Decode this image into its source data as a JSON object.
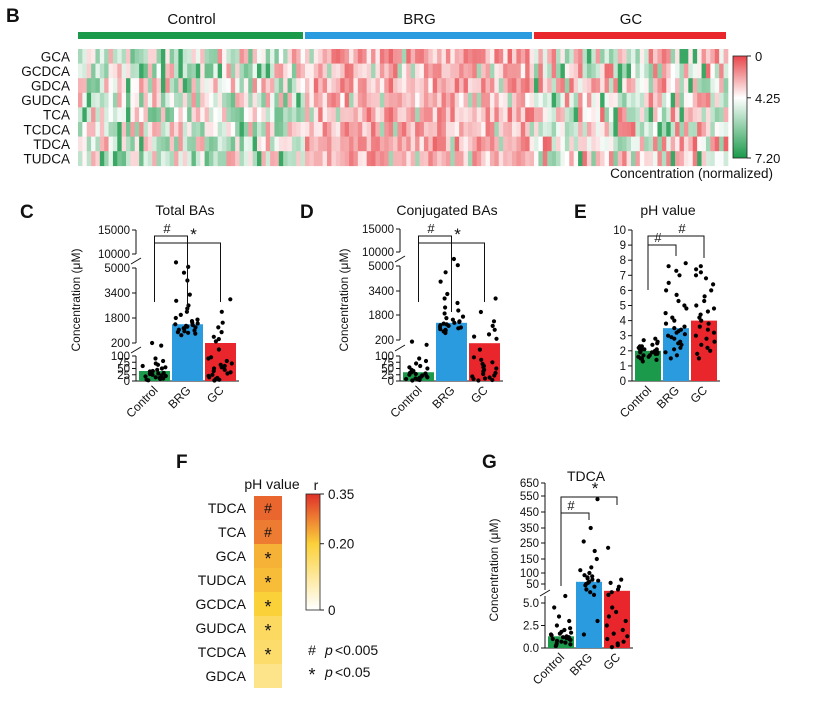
{
  "figure": {
    "panel_labels": [
      "B",
      "C",
      "D",
      "E",
      "F",
      "G"
    ]
  },
  "colors": {
    "control": "#1a9a4a",
    "brg": "#2b9be0",
    "gc": "#e8262c",
    "heat_low": "#1a9a4a",
    "heat_mid": "#ffffff",
    "heat_high": "#e8454a",
    "corr_low": "#ffffff",
    "corr_mid": "#fbd13a",
    "corr_high": "#e0302a"
  },
  "chart_data": [
    {
      "panel": "B",
      "type": "heatmap",
      "groups": [
        "Control",
        "BRG",
        "GC"
      ],
      "rows": [
        "GCA",
        "GCDCA",
        "GDCA",
        "GUDCA",
        "TCA",
        "TCDCA",
        "TDCA",
        "TUDCA"
      ],
      "colorbar": {
        "min": 0,
        "mid": 4.25,
        "max": 7.2,
        "ticks": [
          "0",
          "4.25",
          "7.20"
        ],
        "label": "Concentration (normalized)"
      },
      "group_means": {
        "Control": [
          3.8,
          3.6,
          3.8,
          3.7,
          3.7,
          3.9,
          3.8,
          3.6
        ],
        "BRG": [
          5.6,
          5.5,
          5.5,
          5.4,
          5.6,
          5.5,
          5.6,
          5.5
        ],
        "GC": [
          4.4,
          4.3,
          4.4,
          4.3,
          4.4,
          4.4,
          4.5,
          4.3
        ]
      }
    },
    {
      "panel": "C",
      "type": "bar",
      "title": "Total BAs",
      "ylabel": "Concentration (μM)",
      "categories": [
        "Control",
        "BRG",
        "GC"
      ],
      "values": [
        40,
        1400,
        200
      ],
      "ylim": [
        0,
        15000
      ],
      "yticks": [
        "0",
        "25",
        "50",
        "75",
        "100",
        "200",
        "1800",
        "3400",
        "5000",
        "10000",
        "15000"
      ],
      "significance": [
        {
          "from": "Control",
          "to": "BRG",
          "mark": "#"
        },
        {
          "from": "Control",
          "to": "GC",
          "mark": "*"
        }
      ],
      "points": {
        "Control": [
          3,
          5,
          8,
          10,
          12,
          15,
          18,
          20,
          22,
          25,
          28,
          30,
          32,
          35,
          38,
          40,
          45,
          50,
          55,
          60,
          65,
          70,
          80,
          90,
          180,
          200
        ],
        "BRG": [
          700,
          800,
          850,
          900,
          950,
          1000,
          1050,
          1100,
          1150,
          1200,
          1250,
          1300,
          1350,
          1400,
          1450,
          1500,
          1600,
          1700,
          1800,
          2000,
          2200,
          2400,
          2600,
          2900,
          3300,
          4200,
          4700,
          5400,
          7000
        ],
        "GC": [
          2,
          5,
          8,
          12,
          15,
          20,
          25,
          30,
          35,
          40,
          45,
          50,
          55,
          60,
          65,
          70,
          80,
          90,
          95,
          150,
          300,
          450,
          600,
          900,
          1200,
          1500,
          2200,
          3000
        ]
      }
    },
    {
      "panel": "D",
      "type": "bar",
      "title": "Conjugated BAs",
      "ylabel": "Concentration (μM)",
      "categories": [
        "Control",
        "BRG",
        "GC"
      ],
      "values": [
        35,
        1300,
        180
      ],
      "ylim": [
        0,
        15000
      ],
      "yticks": [
        "0",
        "25",
        "50",
        "75",
        "100",
        "200",
        "1800",
        "3400",
        "5000",
        "10000",
        "15000"
      ],
      "significance": [
        {
          "from": "Control",
          "to": "BRG",
          "mark": "#"
        },
        {
          "from": "Control",
          "to": "GC",
          "mark": "*"
        }
      ],
      "points": {
        "Control": [
          2,
          4,
          6,
          8,
          10,
          12,
          15,
          18,
          20,
          22,
          25,
          28,
          30,
          32,
          35,
          40,
          45,
          50,
          55,
          60,
          70,
          80,
          90,
          170,
          190
        ],
        "BRG": [
          650,
          750,
          800,
          850,
          900,
          950,
          1000,
          1050,
          1100,
          1150,
          1200,
          1250,
          1300,
          1350,
          1400,
          1500,
          1600,
          1700,
          1900,
          2100,
          2300,
          2600,
          2900,
          3200,
          4000,
          4600,
          5300,
          7500
        ],
        "GC": [
          2,
          4,
          8,
          10,
          14,
          18,
          22,
          28,
          32,
          38,
          45,
          50,
          55,
          60,
          68,
          75,
          85,
          95,
          140,
          280,
          420,
          560,
          850,
          1100,
          1400,
          2000,
          2900
        ]
      }
    },
    {
      "panel": "E",
      "type": "bar",
      "title": "pH value",
      "ylabel": "",
      "categories": [
        "Control",
        "BRG",
        "GC"
      ],
      "values": [
        2.0,
        3.5,
        4.0
      ],
      "ylim": [
        0,
        10
      ],
      "yticks": [
        "0",
        "1",
        "2",
        "3",
        "4",
        "5",
        "6",
        "7",
        "8",
        "9",
        "10"
      ],
      "significance": [
        {
          "from": "Control",
          "to": "BRG",
          "mark": "#"
        },
        {
          "from": "Control",
          "to": "GC",
          "mark": "#"
        }
      ],
      "points": {
        "Control": [
          1.3,
          1.4,
          1.5,
          1.5,
          1.6,
          1.6,
          1.7,
          1.7,
          1.8,
          1.8,
          1.8,
          1.9,
          1.9,
          1.9,
          2.0,
          2.0,
          2.0,
          2.1,
          2.1,
          2.1,
          2.2,
          2.2,
          2.3,
          2.3,
          2.4,
          2.5,
          2.6,
          2.7,
          2.8
        ],
        "BRG": [
          1.5,
          1.7,
          1.9,
          2.1,
          2.2,
          2.4,
          2.5,
          2.6,
          2.8,
          2.9,
          3.0,
          3.1,
          3.2,
          3.3,
          3.4,
          3.5,
          3.6,
          3.8,
          4.0,
          4.2,
          4.5,
          4.8,
          5.0,
          5.3,
          5.7,
          6.0,
          6.5,
          7.0,
          7.3,
          7.6,
          7.8
        ],
        "GC": [
          1.5,
          1.8,
          2.0,
          2.2,
          2.4,
          2.6,
          2.8,
          3.0,
          3.2,
          3.4,
          3.6,
          3.8,
          4.0,
          4.2,
          4.4,
          4.6,
          4.8,
          5.0,
          5.3,
          5.6,
          6.0,
          6.4,
          6.8,
          7.0,
          7.2,
          7.4,
          7.6
        ]
      }
    },
    {
      "panel": "F",
      "type": "heatmap",
      "title": "pH value",
      "colorbar_label": "r",
      "colorbar": {
        "min": 0,
        "mid": 0.2,
        "max": 0.35,
        "ticks": [
          "0",
          "0.20",
          "0.35"
        ]
      },
      "rows": [
        "TDCA",
        "TCA",
        "GCA",
        "TUDCA",
        "GCDCA",
        "GUDCA",
        "TCDCA",
        "GDCA"
      ],
      "r_values": [
        0.3,
        0.28,
        0.23,
        0.22,
        0.2,
        0.16,
        0.15,
        0.12
      ],
      "marks": [
        "#",
        "#",
        "*",
        "*",
        "*",
        "*",
        "*",
        ""
      ],
      "legend": [
        {
          "mark": "#",
          "p_symbol": "p",
          "text": "<0.005"
        },
        {
          "mark": "*",
          "p_symbol": "p",
          "text": "<0.05"
        }
      ]
    },
    {
      "panel": "G",
      "type": "bar",
      "title": "TDCA",
      "ylabel": "Concentration (μM)",
      "categories": [
        "Control",
        "BRG",
        "GC"
      ],
      "values": [
        1.3,
        60,
        25
      ],
      "ylim": [
        0,
        650
      ],
      "yticks": [
        "0.0",
        "2.5",
        "5.0",
        "50",
        "100",
        "150",
        "250",
        "350",
        "450",
        "550",
        "650"
      ],
      "significance": [
        {
          "from": "Control",
          "to": "BRG",
          "mark": "#"
        },
        {
          "from": "Control",
          "to": "GC",
          "mark": "*"
        }
      ],
      "points": {
        "Control": [
          0.2,
          0.3,
          0.4,
          0.5,
          0.6,
          0.7,
          0.8,
          0.9,
          1.0,
          1.0,
          1.1,
          1.2,
          1.2,
          1.3,
          1.4,
          1.5,
          1.6,
          1.7,
          1.8,
          2.0,
          2.2,
          2.5,
          3.0,
          3.5,
          4.5,
          6
        ],
        "BRG": [
          1.5,
          3,
          10,
          20,
          30,
          40,
          45,
          50,
          55,
          60,
          65,
          70,
          75,
          80,
          85,
          90,
          100,
          110,
          120,
          150,
          200,
          260,
          350,
          530
        ],
        "GC": [
          0.1,
          0.3,
          0.5,
          0.7,
          1.0,
          1.3,
          1.6,
          2.0,
          2.5,
          3.0,
          3.5,
          4.0,
          4.5,
          10,
          20,
          30,
          40,
          55,
          70,
          220
        ]
      }
    }
  ]
}
